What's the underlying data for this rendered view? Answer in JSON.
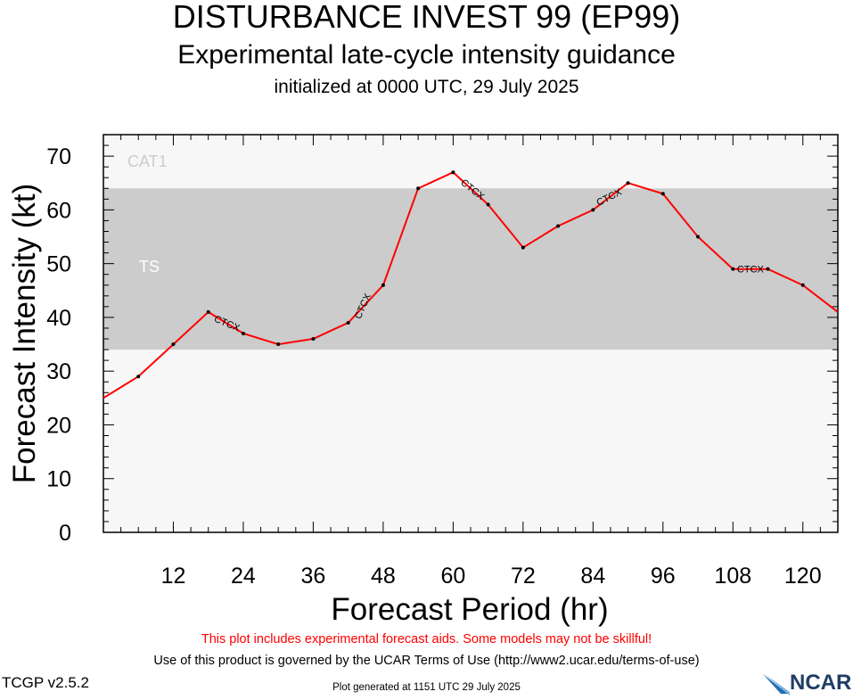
{
  "header": {
    "title": "DISTURBANCE INVEST 99 (EP99)",
    "subtitle": "Experimental late-cycle intensity guidance",
    "init": "initialized at 0000 UTC, 29 July 2025"
  },
  "footer": {
    "warning": "This plot includes experimental forecast aids. Some models may not be skillful!",
    "terms": "Use of this product is governed by the UCAR Terms of Use (http://www2.ucar.edu/terms-of-use)",
    "generated": "Plot generated at 1151 UTC   29 July 2025",
    "version": "TCGP v2.5.2",
    "logo": "NCAR"
  },
  "colors": {
    "series": "#ff0000",
    "ts_band": "#cccccc",
    "plot_bg": "#f7f7f7",
    "cat1_label": "#cccccc",
    "ts_label": "#ffffff",
    "logo": "#1f3d66"
  },
  "chart_data": {
    "type": "line",
    "xlabel": "Forecast Period (hr)",
    "ylabel": "Forecast Intensity (kt)",
    "xlim": [
      0,
      126
    ],
    "ylim": [
      0,
      74
    ],
    "x_ticks": [
      12,
      24,
      36,
      48,
      60,
      72,
      84,
      96,
      108,
      120
    ],
    "y_ticks": [
      0,
      10,
      20,
      30,
      40,
      50,
      60,
      70
    ],
    "grid": false,
    "bands": [
      {
        "label": "TS",
        "from": 34,
        "to": 64
      },
      {
        "label": "CAT1",
        "from": 64,
        "to": 74
      }
    ],
    "series": [
      {
        "name": "CTCX",
        "x": [
          0,
          6,
          12,
          18,
          24,
          30,
          36,
          42,
          48,
          54,
          60,
          66,
          72,
          78,
          84,
          90,
          96,
          102,
          108,
          114,
          120,
          126
        ],
        "values": [
          25,
          29,
          35,
          41,
          37,
          35,
          36,
          39,
          46,
          64,
          67,
          61,
          53,
          57,
          60,
          65,
          63,
          55,
          49,
          49,
          46,
          41
        ]
      }
    ],
    "series_labels": [
      {
        "text": "CTCX",
        "x": 21,
        "y": 39,
        "angle": 23
      },
      {
        "text": "CTCX",
        "x": 45,
        "y": 42.5,
        "angle": -66
      },
      {
        "text": "CTCX",
        "x": 63,
        "y": 64,
        "angle": 38
      },
      {
        "text": "CTCX",
        "x": 87,
        "y": 62.5,
        "angle": -27
      },
      {
        "text": "CTCX",
        "x": 111,
        "y": 49,
        "angle": 0
      }
    ]
  }
}
